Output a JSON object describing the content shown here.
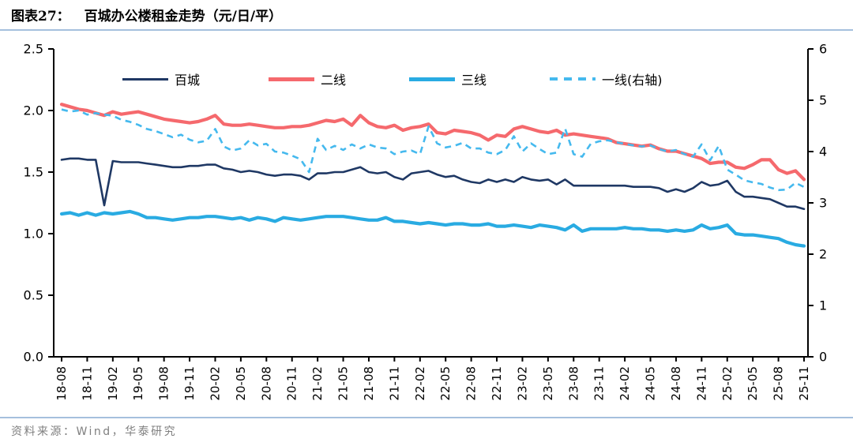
{
  "header": {
    "figure_label": "图表27：",
    "title": "百城办公楼租金走势（元/日/平）"
  },
  "footer": {
    "source": "资料来源：Wind，华泰研究"
  },
  "chart_data": {
    "type": "line",
    "title": "百城办公楼租金走势（元/日/平）",
    "grid": false,
    "legend_position": "top",
    "x_tick_every": 3,
    "x_months": [
      "18-08",
      "18-09",
      "18-10",
      "18-11",
      "18-12",
      "19-01",
      "19-02",
      "19-03",
      "19-04",
      "19-05",
      "19-06",
      "19-07",
      "19-08",
      "19-09",
      "19-10",
      "19-11",
      "19-12",
      "20-01",
      "20-02",
      "20-03",
      "20-04",
      "20-05",
      "20-06",
      "20-07",
      "20-08",
      "20-09",
      "20-10",
      "20-11",
      "20-12",
      "21-01",
      "21-02",
      "21-03",
      "21-04",
      "21-05",
      "21-06",
      "21-07",
      "21-08",
      "21-09",
      "21-10",
      "21-11",
      "21-12",
      "22-01",
      "22-02",
      "22-03",
      "22-04",
      "22-05",
      "22-06",
      "22-07",
      "22-08",
      "22-09",
      "22-10",
      "22-11",
      "22-12",
      "23-01",
      "23-02",
      "23-03",
      "23-04",
      "23-05",
      "23-06",
      "23-07",
      "23-08",
      "23-09",
      "23-10",
      "23-11",
      "23-12",
      "24-01",
      "24-02",
      "24-03",
      "24-04",
      "24-05",
      "24-06",
      "24-07",
      "24-08",
      "24-09",
      "24-10",
      "24-11",
      "24-12",
      "25-01",
      "25-02",
      "25-03",
      "25-04",
      "25-05",
      "25-06",
      "25-07",
      "25-08",
      "25-09",
      "25-10",
      "25-11"
    ],
    "axes": {
      "left": {
        "min": 0,
        "max": 2.5,
        "tick_labels": [
          "0.0",
          "0.5",
          "1.0",
          "1.5",
          "2.0",
          "2.5"
        ]
      },
      "right": {
        "min": 0,
        "max": 6,
        "tick_labels": [
          "0",
          "1",
          "2",
          "3",
          "4",
          "5",
          "6"
        ]
      }
    },
    "series": [
      {
        "name": "百城",
        "axis": "left",
        "style": "solid",
        "color": "#1F3864",
        "values": [
          1.6,
          1.61,
          1.61,
          1.6,
          1.6,
          1.23,
          1.59,
          1.58,
          1.58,
          1.58,
          1.57,
          1.56,
          1.55,
          1.54,
          1.54,
          1.55,
          1.55,
          1.56,
          1.56,
          1.53,
          1.52,
          1.5,
          1.51,
          1.5,
          1.48,
          1.47,
          1.48,
          1.48,
          1.47,
          1.44,
          1.49,
          1.49,
          1.5,
          1.5,
          1.52,
          1.54,
          1.5,
          1.49,
          1.5,
          1.46,
          1.44,
          1.49,
          1.5,
          1.51,
          1.48,
          1.46,
          1.47,
          1.44,
          1.42,
          1.41,
          1.44,
          1.42,
          1.44,
          1.42,
          1.46,
          1.44,
          1.43,
          1.44,
          1.4,
          1.44,
          1.39,
          1.39,
          1.39,
          1.39,
          1.39,
          1.39,
          1.39,
          1.38,
          1.38,
          1.38,
          1.37,
          1.34,
          1.36,
          1.34,
          1.37,
          1.42,
          1.39,
          1.4,
          1.43,
          1.34,
          1.3,
          1.3,
          1.29,
          1.28,
          1.25,
          1.22,
          1.22,
          1.2
        ]
      },
      {
        "name": "二线",
        "axis": "left",
        "style": "solid",
        "color": "#F5696D",
        "values": [
          2.05,
          2.03,
          2.01,
          2.0,
          1.98,
          1.96,
          1.99,
          1.97,
          1.98,
          1.99,
          1.97,
          1.95,
          1.93,
          1.92,
          1.91,
          1.9,
          1.91,
          1.93,
          1.96,
          1.89,
          1.88,
          1.88,
          1.89,
          1.88,
          1.87,
          1.86,
          1.86,
          1.87,
          1.87,
          1.88,
          1.9,
          1.92,
          1.91,
          1.93,
          1.88,
          1.96,
          1.9,
          1.87,
          1.86,
          1.88,
          1.84,
          1.86,
          1.87,
          1.89,
          1.82,
          1.81,
          1.84,
          1.83,
          1.82,
          1.8,
          1.76,
          1.8,
          1.79,
          1.85,
          1.87,
          1.85,
          1.83,
          1.82,
          1.84,
          1.8,
          1.81,
          1.8,
          1.79,
          1.78,
          1.77,
          1.74,
          1.73,
          1.72,
          1.71,
          1.72,
          1.69,
          1.67,
          1.67,
          1.65,
          1.63,
          1.61,
          1.57,
          1.58,
          1.58,
          1.54,
          1.53,
          1.56,
          1.6,
          1.6,
          1.52,
          1.49,
          1.51,
          1.44
        ]
      },
      {
        "name": "三线",
        "axis": "left",
        "style": "solid",
        "color": "#29ABE2",
        "values": [
          1.16,
          1.17,
          1.15,
          1.17,
          1.15,
          1.17,
          1.16,
          1.17,
          1.18,
          1.16,
          1.13,
          1.13,
          1.12,
          1.11,
          1.12,
          1.13,
          1.13,
          1.14,
          1.14,
          1.13,
          1.12,
          1.13,
          1.11,
          1.13,
          1.12,
          1.1,
          1.13,
          1.12,
          1.11,
          1.12,
          1.13,
          1.14,
          1.14,
          1.14,
          1.13,
          1.12,
          1.11,
          1.11,
          1.13,
          1.1,
          1.1,
          1.09,
          1.08,
          1.09,
          1.08,
          1.07,
          1.08,
          1.08,
          1.07,
          1.07,
          1.08,
          1.06,
          1.06,
          1.07,
          1.06,
          1.05,
          1.07,
          1.06,
          1.05,
          1.03,
          1.07,
          1.02,
          1.04,
          1.04,
          1.04,
          1.04,
          1.05,
          1.04,
          1.04,
          1.03,
          1.03,
          1.02,
          1.03,
          1.02,
          1.03,
          1.07,
          1.04,
          1.05,
          1.07,
          1.0,
          0.99,
          0.99,
          0.98,
          0.97,
          0.96,
          0.93,
          0.91,
          0.9
        ]
      },
      {
        "name": "一线(右轴)",
        "axis": "right",
        "style": "dashed",
        "color": "#45B9EE",
        "values": [
          4.82,
          4.78,
          4.8,
          4.72,
          4.75,
          4.72,
          4.7,
          4.62,
          4.58,
          4.52,
          4.44,
          4.4,
          4.34,
          4.28,
          4.33,
          4.23,
          4.18,
          4.21,
          4.44,
          4.1,
          4.02,
          4.06,
          4.22,
          4.12,
          4.15,
          4.0,
          3.98,
          3.92,
          3.85,
          3.6,
          4.25,
          4.03,
          4.11,
          4.03,
          4.14,
          4.06,
          4.14,
          4.08,
          4.06,
          3.95,
          4.0,
          4.02,
          3.95,
          4.49,
          4.16,
          4.08,
          4.11,
          4.17,
          4.06,
          4.06,
          3.98,
          3.95,
          4.03,
          4.3,
          4.0,
          4.16,
          4.05,
          3.95,
          3.98,
          4.45,
          3.95,
          3.9,
          4.15,
          4.2,
          4.22,
          4.18,
          4.15,
          4.12,
          4.1,
          4.12,
          4.05,
          4.0,
          4.03,
          3.95,
          3.9,
          4.14,
          3.83,
          4.11,
          3.65,
          3.55,
          3.44,
          3.4,
          3.37,
          3.3,
          3.25,
          3.26,
          3.39,
          3.31
        ]
      }
    ]
  }
}
